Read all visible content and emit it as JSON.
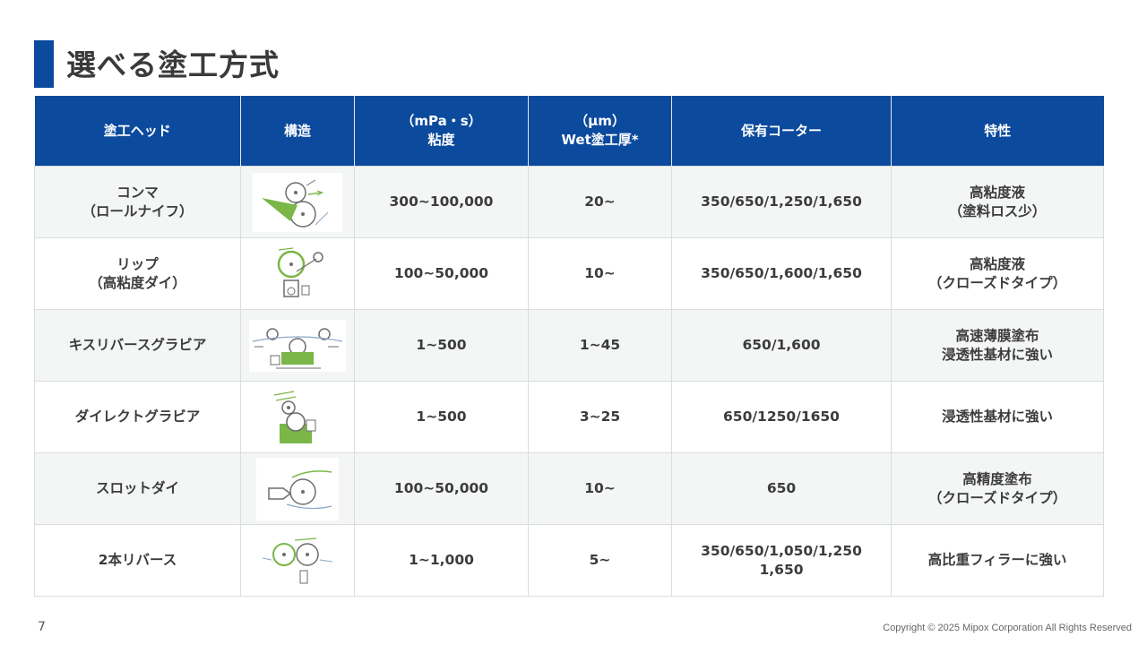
{
  "title": "選べる塗工方式",
  "table": {
    "headers": [
      "塗工ヘッド",
      "構造",
      "（mPa・s）\n粘度",
      "（μm）\nWet塗工厚*",
      "保有コーター",
      "特性"
    ],
    "rows": [
      {
        "head": "コンマ\n（ロールナイフ）",
        "structure_icon": "comma-roll-knife-diagram",
        "viscosity": "300~100,000",
        "thickness": "20~",
        "coaters": "350/650/1,250/1,650",
        "feature": "高粘度液\n（塗料ロス少）"
      },
      {
        "head": "リップ\n（高粘度ダイ）",
        "structure_icon": "lip-die-diagram",
        "viscosity": "100~50,000",
        "thickness": "10~",
        "coaters": "350/650/1,600/1,650",
        "feature": "高粘度液\n（クローズドタイプ）"
      },
      {
        "head": "キスリバースグラビア",
        "structure_icon": "kiss-reverse-gravure-diagram",
        "viscosity": "1~500",
        "thickness": "1~45",
        "coaters": "650/1,600",
        "feature": "高速薄膜塗布\n浸透性基材に強い"
      },
      {
        "head": "ダイレクトグラビア",
        "structure_icon": "direct-gravure-diagram",
        "viscosity": "1~500",
        "thickness": "3~25",
        "coaters": "650/1250/1650",
        "feature": "浸透性基材に強い"
      },
      {
        "head": "スロットダイ",
        "structure_icon": "slot-die-diagram",
        "viscosity": "100~50,000",
        "thickness": "10~",
        "coaters": "650",
        "feature": "高精度塗布\n（クローズドタイプ）"
      },
      {
        "head": "2本リバース",
        "structure_icon": "two-roll-reverse-diagram",
        "viscosity": "1~1,000",
        "thickness": "5~",
        "coaters": "350/650/1,050/1,250\n1,650",
        "feature": "高比重フィラーに強い"
      }
    ]
  },
  "footer": {
    "page_number": "7",
    "copyright": "Copyright © 2025 Mipox Corporation All Rights Reserved"
  },
  "colors": {
    "header_bg": "#0b4a9c",
    "accent_green": "#7ab648",
    "roll_gray": "#6d6d6d"
  }
}
